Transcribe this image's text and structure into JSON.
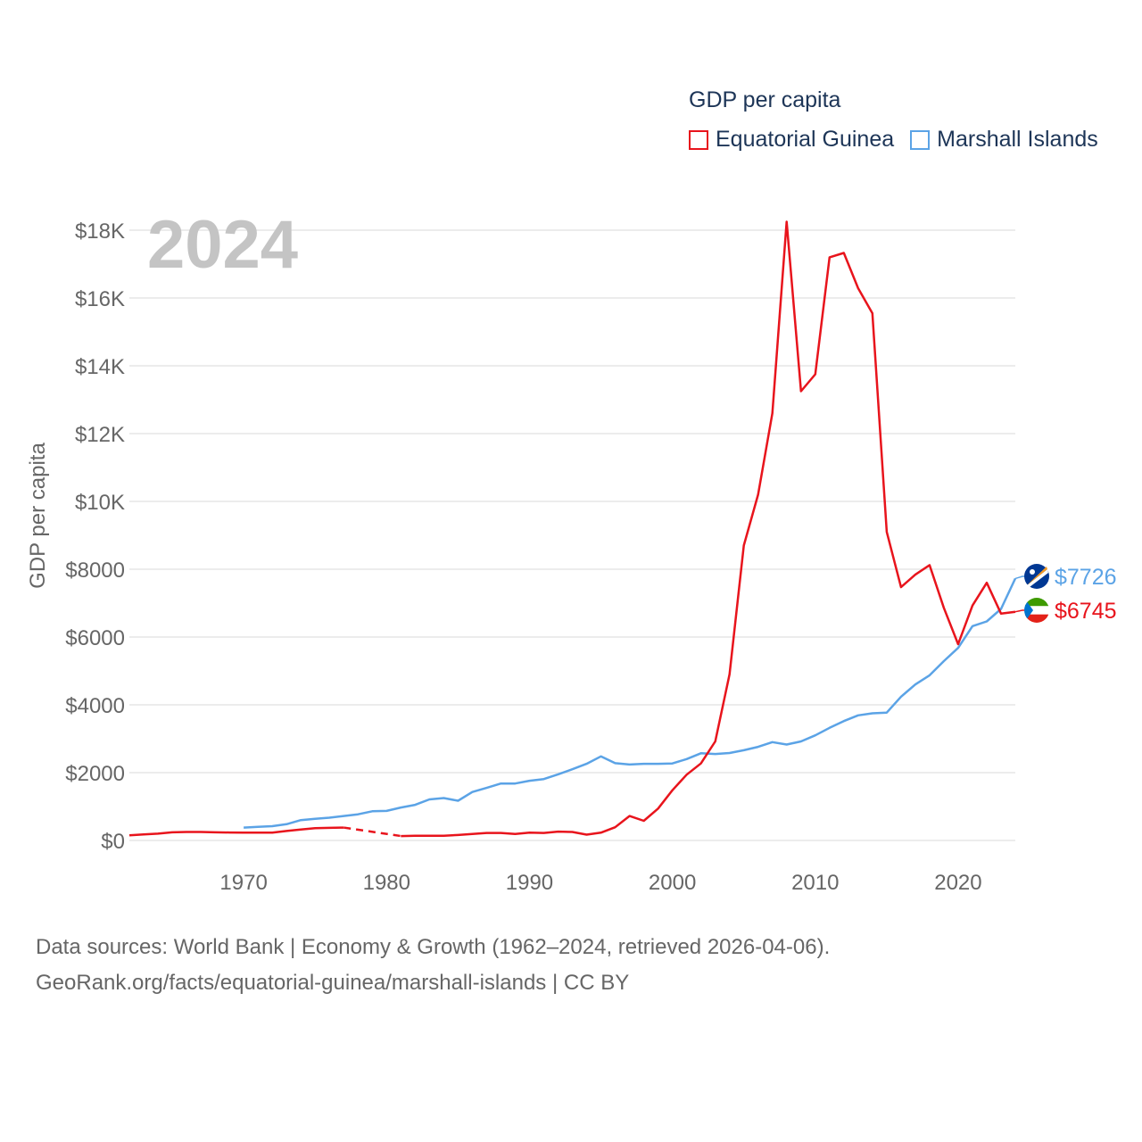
{
  "legend": {
    "title": "GDP per capita",
    "items": [
      {
        "label": "Equatorial Guinea",
        "color": "#e8141c"
      },
      {
        "label": "Marshall Islands",
        "color": "#5ba3e6"
      }
    ]
  },
  "footer": {
    "line1": "Data sources: World Bank | Economy & Growth (1962–2024, retrieved 2026-04-06).",
    "line2": "GeoRank.org/facts/equatorial-guinea/marshall-islands | CC BY"
  },
  "chart_data": {
    "type": "line",
    "year_label": "2024",
    "ylabel": "GDP per capita",
    "xlim": [
      1962,
      2024
    ],
    "ylim": [
      0,
      18000
    ],
    "x_ticks": [
      1970,
      1980,
      1990,
      2000,
      2010,
      2020
    ],
    "y_ticks": [
      {
        "value": 0,
        "label": "$0"
      },
      {
        "value": 2000,
        "label": "$2000"
      },
      {
        "value": 4000,
        "label": "$4000"
      },
      {
        "value": 6000,
        "label": "$6000"
      },
      {
        "value": 8000,
        "label": "$8000"
      },
      {
        "value": 10000,
        "label": "$10K"
      },
      {
        "value": 12000,
        "label": "$12K"
      },
      {
        "value": 14000,
        "label": "$14K"
      },
      {
        "value": 16000,
        "label": "$16K"
      },
      {
        "value": 18000,
        "label": "$18K"
      }
    ],
    "series": [
      {
        "name": "Marshall Islands",
        "color": "#5ba3e6",
        "end_label": "$7726",
        "end_value": 7726,
        "icon": "marshall-islands-flag-icon",
        "points": [
          [
            1970,
            380
          ],
          [
            1971,
            400
          ],
          [
            1972,
            420
          ],
          [
            1973,
            480
          ],
          [
            1974,
            600
          ],
          [
            1975,
            640
          ],
          [
            1976,
            670
          ],
          [
            1977,
            720
          ],
          [
            1978,
            770
          ],
          [
            1979,
            860
          ],
          [
            1980,
            870
          ],
          [
            1981,
            970
          ],
          [
            1982,
            1050
          ],
          [
            1983,
            1210
          ],
          [
            1984,
            1250
          ],
          [
            1985,
            1170
          ],
          [
            1986,
            1430
          ],
          [
            1987,
            1550
          ],
          [
            1988,
            1680
          ],
          [
            1989,
            1680
          ],
          [
            1990,
            1760
          ],
          [
            1991,
            1810
          ],
          [
            1992,
            1950
          ],
          [
            1993,
            2100
          ],
          [
            1994,
            2260
          ],
          [
            1995,
            2480
          ],
          [
            1996,
            2280
          ],
          [
            1997,
            2240
          ],
          [
            1998,
            2260
          ],
          [
            1999,
            2260
          ],
          [
            2000,
            2270
          ],
          [
            2001,
            2400
          ],
          [
            2002,
            2570
          ],
          [
            2003,
            2550
          ],
          [
            2004,
            2580
          ],
          [
            2005,
            2660
          ],
          [
            2006,
            2760
          ],
          [
            2007,
            2900
          ],
          [
            2008,
            2830
          ],
          [
            2009,
            2920
          ],
          [
            2010,
            3100
          ],
          [
            2011,
            3320
          ],
          [
            2012,
            3520
          ],
          [
            2013,
            3690
          ],
          [
            2014,
            3750
          ],
          [
            2015,
            3770
          ],
          [
            2016,
            4240
          ],
          [
            2017,
            4600
          ],
          [
            2018,
            4870
          ],
          [
            2019,
            5290
          ],
          [
            2020,
            5680
          ],
          [
            2021,
            6320
          ],
          [
            2022,
            6460
          ],
          [
            2023,
            6830
          ],
          [
            2024,
            7726
          ]
        ],
        "gaps": []
      },
      {
        "name": "Equatorial Guinea",
        "color": "#e8141c",
        "end_label": "$6745",
        "end_value": 6745,
        "icon": "equatorial-guinea-flag-icon",
        "points": [
          [
            1962,
            150
          ],
          [
            1963,
            180
          ],
          [
            1964,
            200
          ],
          [
            1965,
            240
          ],
          [
            1966,
            250
          ],
          [
            1967,
            250
          ],
          [
            1968,
            240
          ],
          [
            1969,
            235
          ],
          [
            1970,
            230
          ],
          [
            1971,
            230
          ],
          [
            1972,
            230
          ],
          [
            1973,
            280
          ],
          [
            1974,
            320
          ],
          [
            1975,
            360
          ],
          [
            1976,
            370
          ],
          [
            1977,
            380
          ],
          [
            1981,
            130
          ],
          [
            1982,
            140
          ],
          [
            1983,
            140
          ],
          [
            1984,
            140
          ],
          [
            1985,
            160
          ],
          [
            1986,
            190
          ],
          [
            1987,
            220
          ],
          [
            1988,
            220
          ],
          [
            1989,
            190
          ],
          [
            1990,
            230
          ],
          [
            1991,
            220
          ],
          [
            1992,
            260
          ],
          [
            1993,
            250
          ],
          [
            1994,
            170
          ],
          [
            1995,
            230
          ],
          [
            1996,
            390
          ],
          [
            1997,
            720
          ],
          [
            1998,
            580
          ],
          [
            1999,
            940
          ],
          [
            2000,
            1480
          ],
          [
            2001,
            1940
          ],
          [
            2002,
            2270
          ],
          [
            2003,
            2920
          ],
          [
            2004,
            4900
          ],
          [
            2005,
            8700
          ],
          [
            2006,
            10200
          ],
          [
            2007,
            12600
          ],
          [
            2008,
            18250
          ],
          [
            2009,
            13250
          ],
          [
            2010,
            13750
          ],
          [
            2011,
            17200
          ],
          [
            2012,
            17330
          ],
          [
            2013,
            16290
          ],
          [
            2014,
            15550
          ],
          [
            2015,
            9100
          ],
          [
            2016,
            7470
          ],
          [
            2017,
            7840
          ],
          [
            2018,
            8120
          ],
          [
            2019,
            6860
          ],
          [
            2020,
            5790
          ],
          [
            2021,
            6930
          ],
          [
            2022,
            7600
          ],
          [
            2023,
            6690
          ],
          [
            2024,
            6745
          ]
        ],
        "gaps": [
          [
            1977,
            1981
          ]
        ]
      }
    ]
  }
}
